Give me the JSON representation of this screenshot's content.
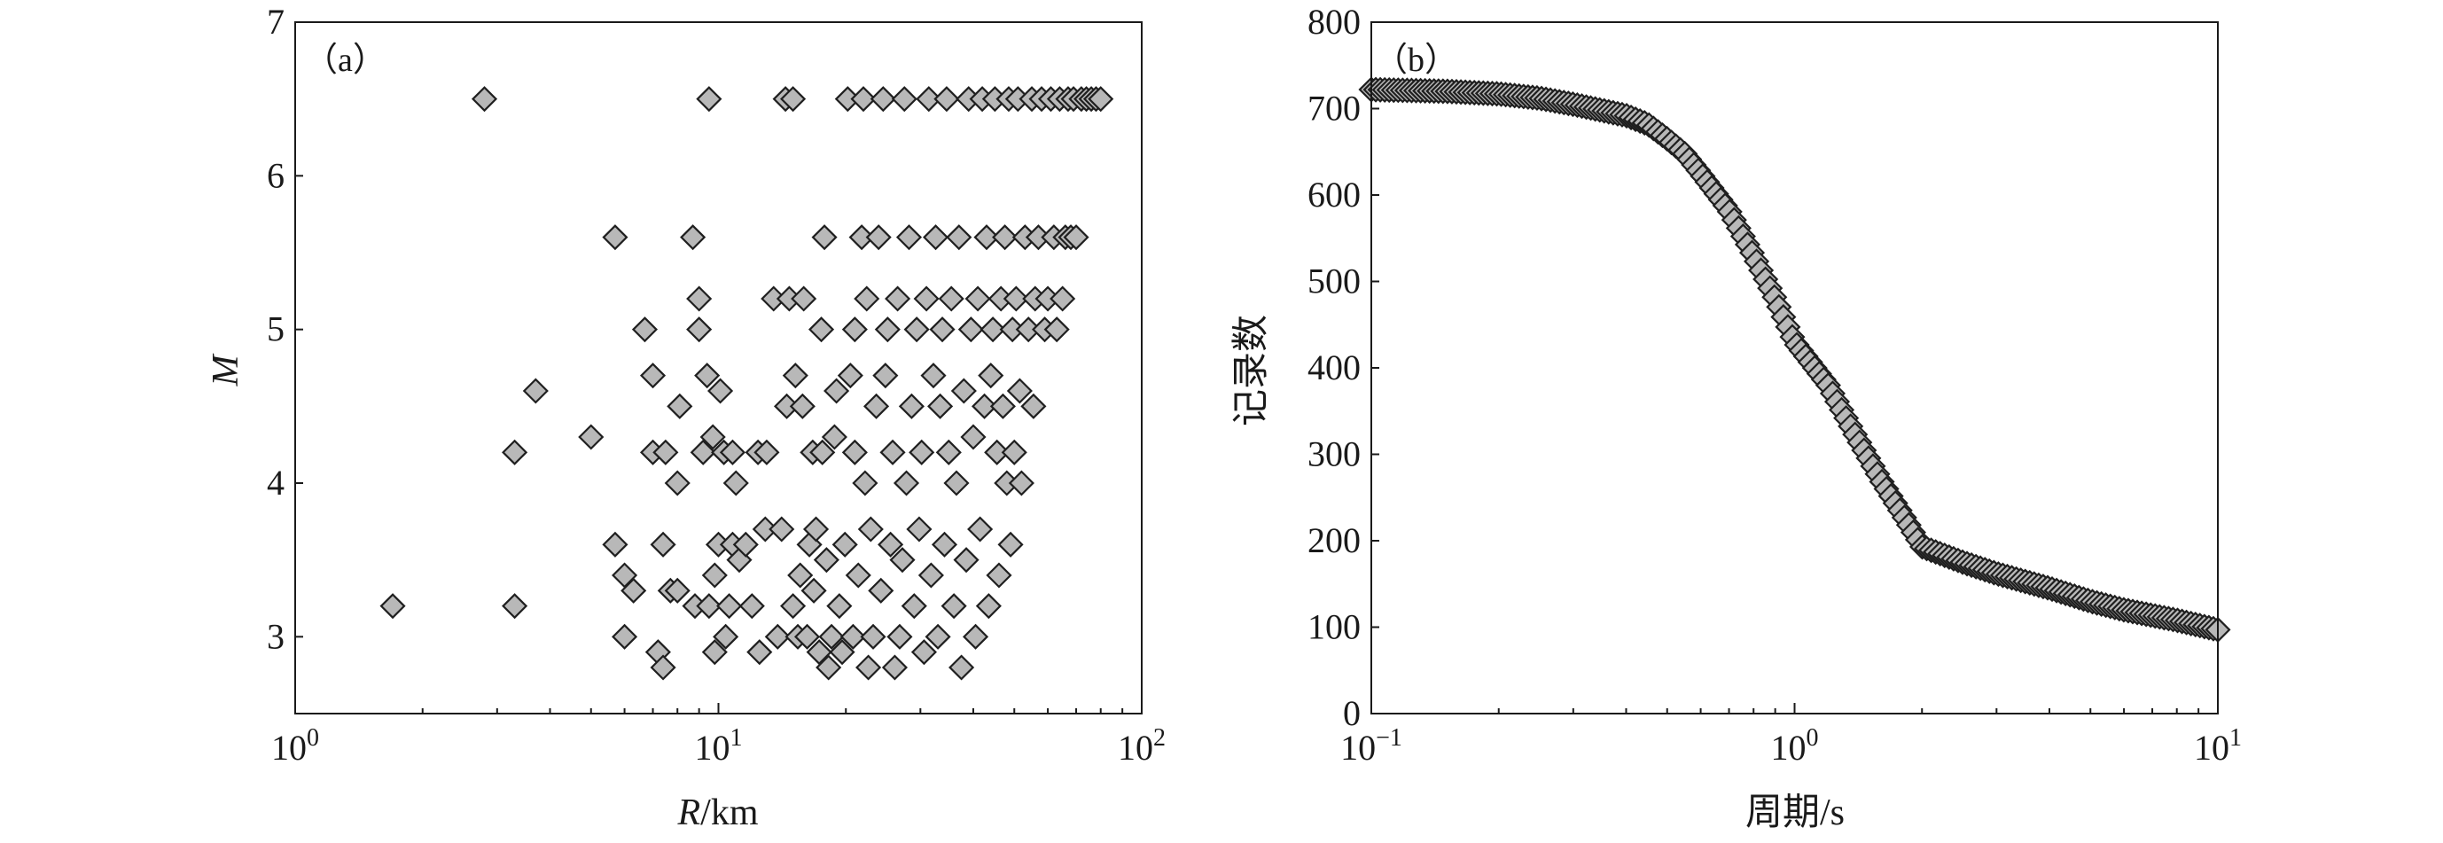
{
  "chart_data": [
    {
      "type": "scatter",
      "panel_label": "（a）",
      "xlabel_italic": "R",
      "xlabel_unit": "/km",
      "ylabel": "M",
      "xscale": "log",
      "xlim": [
        1,
        100
      ],
      "ylim": [
        2.5,
        7
      ],
      "x_ticks": [
        1,
        10,
        100
      ],
      "x_tick_labels": [
        {
          "base": "10",
          "exp": "0"
        },
        {
          "base": "10",
          "exp": "1"
        },
        {
          "base": "10",
          "exp": "2"
        }
      ],
      "y_ticks": [
        3,
        4,
        5,
        6,
        7
      ],
      "y_tick_labels": [
        "3",
        "4",
        "5",
        "6",
        "7"
      ],
      "grid": false,
      "marker": "diamond",
      "marker_color": "#b8b8b8",
      "points": [
        [
          1.7,
          3.2
        ],
        [
          2.8,
          6.5
        ],
        [
          3.3,
          3.2
        ],
        [
          3.3,
          4.2
        ],
        [
          3.7,
          4.6
        ],
        [
          5.0,
          4.3
        ],
        [
          5.7,
          5.6
        ],
        [
          5.7,
          3.6
        ],
        [
          6.0,
          3.0
        ],
        [
          6.0,
          3.4
        ],
        [
          6.3,
          3.3
        ],
        [
          6.7,
          5.0
        ],
        [
          7.0,
          4.7
        ],
        [
          7.0,
          4.2
        ],
        [
          7.2,
          2.9
        ],
        [
          7.4,
          3.6
        ],
        [
          7.4,
          2.8
        ],
        [
          7.5,
          4.2
        ],
        [
          7.7,
          3.3
        ],
        [
          8.0,
          4.0
        ],
        [
          8.0,
          3.3
        ],
        [
          8.1,
          4.5
        ],
        [
          8.7,
          5.6
        ],
        [
          8.8,
          3.2
        ],
        [
          9.0,
          5.2
        ],
        [
          9.0,
          5.0
        ],
        [
          9.2,
          4.2
        ],
        [
          9.4,
          4.7
        ],
        [
          9.5,
          6.5
        ],
        [
          9.5,
          3.2
        ],
        [
          9.7,
          4.3
        ],
        [
          9.8,
          3.4
        ],
        [
          9.8,
          2.9
        ],
        [
          10.0,
          3.6
        ],
        [
          10.1,
          4.6
        ],
        [
          10.3,
          4.2
        ],
        [
          10.4,
          3.0
        ],
        [
          10.6,
          3.2
        ],
        [
          10.8,
          3.6
        ],
        [
          10.8,
          4.2
        ],
        [
          11.0,
          4.0
        ],
        [
          11.2,
          3.5
        ],
        [
          11.6,
          3.6
        ],
        [
          12.0,
          3.2
        ],
        [
          12.4,
          4.2
        ],
        [
          12.5,
          2.9
        ],
        [
          12.9,
          3.7
        ],
        [
          13.0,
          4.2
        ],
        [
          13.5,
          5.2
        ],
        [
          13.8,
          3.0
        ],
        [
          14.1,
          3.7
        ],
        [
          14.4,
          6.5
        ],
        [
          14.5,
          4.5
        ],
        [
          14.7,
          5.2
        ],
        [
          15.0,
          6.5
        ],
        [
          15.0,
          3.2
        ],
        [
          15.2,
          4.7
        ],
        [
          15.4,
          3.0
        ],
        [
          15.6,
          3.4
        ],
        [
          15.8,
          4.5
        ],
        [
          15.9,
          5.2
        ],
        [
          16.2,
          3.0
        ],
        [
          16.4,
          3.6
        ],
        [
          16.7,
          4.2
        ],
        [
          16.8,
          3.3
        ],
        [
          17.0,
          3.7
        ],
        [
          17.3,
          2.9
        ],
        [
          17.5,
          5.0
        ],
        [
          17.6,
          4.2
        ],
        [
          17.8,
          5.6
        ],
        [
          18.0,
          3.5
        ],
        [
          18.2,
          2.8
        ],
        [
          18.5,
          3.0
        ],
        [
          18.8,
          4.3
        ],
        [
          19.0,
          4.6
        ],
        [
          19.3,
          3.2
        ],
        [
          19.6,
          2.9
        ],
        [
          19.9,
          3.6
        ],
        [
          20.2,
          6.5
        ],
        [
          20.5,
          4.7
        ],
        [
          20.8,
          3.0
        ],
        [
          21.0,
          4.2
        ],
        [
          21.0,
          5.0
        ],
        [
          21.4,
          3.4
        ],
        [
          21.8,
          5.6
        ],
        [
          22.0,
          6.5
        ],
        [
          22.2,
          4.0
        ],
        [
          22.4,
          5.2
        ],
        [
          22.6,
          2.8
        ],
        [
          22.9,
          3.7
        ],
        [
          23.2,
          3.0
        ],
        [
          23.6,
          4.5
        ],
        [
          23.9,
          5.6
        ],
        [
          24.2,
          3.3
        ],
        [
          24.5,
          6.5
        ],
        [
          24.8,
          4.7
        ],
        [
          25.1,
          5.0
        ],
        [
          25.5,
          3.6
        ],
        [
          25.8,
          4.2
        ],
        [
          26.1,
          2.8
        ],
        [
          26.5,
          5.2
        ],
        [
          26.8,
          3.0
        ],
        [
          27.2,
          3.5
        ],
        [
          27.5,
          6.5
        ],
        [
          27.8,
          4.0
        ],
        [
          28.2,
          5.6
        ],
        [
          28.6,
          4.5
        ],
        [
          29.0,
          3.2
        ],
        [
          29.4,
          5.0
        ],
        [
          29.8,
          3.7
        ],
        [
          30.2,
          4.2
        ],
        [
          30.6,
          2.9
        ],
        [
          31.0,
          5.2
        ],
        [
          31.4,
          6.5
        ],
        [
          31.8,
          3.4
        ],
        [
          32.2,
          4.7
        ],
        [
          32.6,
          5.6
        ],
        [
          33.0,
          3.0
        ],
        [
          33.4,
          4.5
        ],
        [
          33.8,
          5.0
        ],
        [
          34.2,
          3.6
        ],
        [
          34.6,
          6.5
        ],
        [
          35.0,
          4.2
        ],
        [
          35.5,
          5.2
        ],
        [
          36.0,
          3.2
        ],
        [
          36.5,
          4.0
        ],
        [
          37.0,
          5.6
        ],
        [
          37.5,
          2.8
        ],
        [
          38.0,
          4.6
        ],
        [
          38.5,
          3.5
        ],
        [
          39.0,
          6.5
        ],
        [
          39.5,
          5.0
        ],
        [
          40.0,
          4.3
        ],
        [
          40.5,
          3.0
        ],
        [
          41.0,
          5.2
        ],
        [
          41.5,
          3.7
        ],
        [
          42.0,
          6.5
        ],
        [
          42.5,
          4.5
        ],
        [
          43.0,
          5.6
        ],
        [
          43.5,
          3.2
        ],
        [
          44.0,
          4.7
        ],
        [
          44.5,
          5.0
        ],
        [
          45.0,
          6.5
        ],
        [
          45.5,
          4.2
        ],
        [
          46.0,
          3.4
        ],
        [
          46.5,
          5.2
        ],
        [
          47.0,
          4.5
        ],
        [
          47.5,
          5.6
        ],
        [
          48.0,
          4.0
        ],
        [
          48.5,
          6.5
        ],
        [
          49.0,
          3.6
        ],
        [
          49.5,
          5.0
        ],
        [
          50.0,
          4.2
        ],
        [
          50.5,
          5.2
        ],
        [
          51.0,
          6.5
        ],
        [
          51.5,
          4.6
        ],
        [
          52.0,
          4.0
        ],
        [
          53.0,
          5.6
        ],
        [
          54.0,
          5.0
        ],
        [
          55.0,
          6.5
        ],
        [
          55.5,
          4.5
        ],
        [
          56.0,
          5.2
        ],
        [
          57.0,
          5.6
        ],
        [
          58.0,
          6.5
        ],
        [
          59.0,
          5.0
        ],
        [
          60.0,
          5.2
        ],
        [
          61.0,
          6.5
        ],
        [
          62.0,
          5.6
        ],
        [
          63.0,
          5.0
        ],
        [
          64.0,
          6.5
        ],
        [
          65.0,
          5.2
        ],
        [
          66.0,
          5.6
        ],
        [
          67.0,
          6.5
        ],
        [
          68.0,
          5.6
        ],
        [
          69.0,
          6.5
        ],
        [
          70.0,
          5.6
        ],
        [
          72.0,
          6.5
        ],
        [
          74.0,
          6.5
        ],
        [
          76.0,
          6.5
        ],
        [
          78.0,
          6.5
        ],
        [
          80.0,
          6.5
        ]
      ]
    },
    {
      "type": "scatter",
      "panel_label": "（b）",
      "xlabel": "周期/s",
      "ylabel": "记录数",
      "xscale": "log",
      "xlim": [
        0.1,
        10
      ],
      "ylim": [
        0,
        800
      ],
      "x_ticks": [
        0.1,
        1,
        10
      ],
      "x_tick_labels": [
        {
          "base": "10",
          "exp": "−1"
        },
        {
          "base": "10",
          "exp": "0"
        },
        {
          "base": "10",
          "exp": "1"
        }
      ],
      "y_ticks": [
        0,
        100,
        200,
        300,
        400,
        500,
        600,
        700,
        800
      ],
      "y_tick_labels": [
        "0",
        "100",
        "200",
        "300",
        "400",
        "500",
        "600",
        "700",
        "800"
      ],
      "grid": false,
      "marker": "diamond",
      "marker_color": "#b8b8b8",
      "curve": [
        [
          0.1,
          722
        ],
        [
          0.15,
          720
        ],
        [
          0.2,
          717
        ],
        [
          0.25,
          712
        ],
        [
          0.3,
          705
        ],
        [
          0.35,
          698
        ],
        [
          0.4,
          692
        ],
        [
          0.45,
          682
        ],
        [
          0.5,
          665
        ],
        [
          0.55,
          648
        ],
        [
          0.6,
          625
        ],
        [
          0.7,
          582
        ],
        [
          0.8,
          530
        ],
        [
          0.9,
          480
        ],
        [
          1.0,
          430
        ],
        [
          1.2,
          380
        ],
        [
          1.4,
          320
        ],
        [
          1.6,
          270
        ],
        [
          1.8,
          230
        ],
        [
          2.0,
          193
        ],
        [
          2.5,
          175
        ],
        [
          3.0,
          162
        ],
        [
          4.0,
          145
        ],
        [
          5.0,
          130
        ],
        [
          6.0,
          120
        ],
        [
          8.0,
          108
        ],
        [
          10.0,
          97
        ]
      ]
    }
  ]
}
